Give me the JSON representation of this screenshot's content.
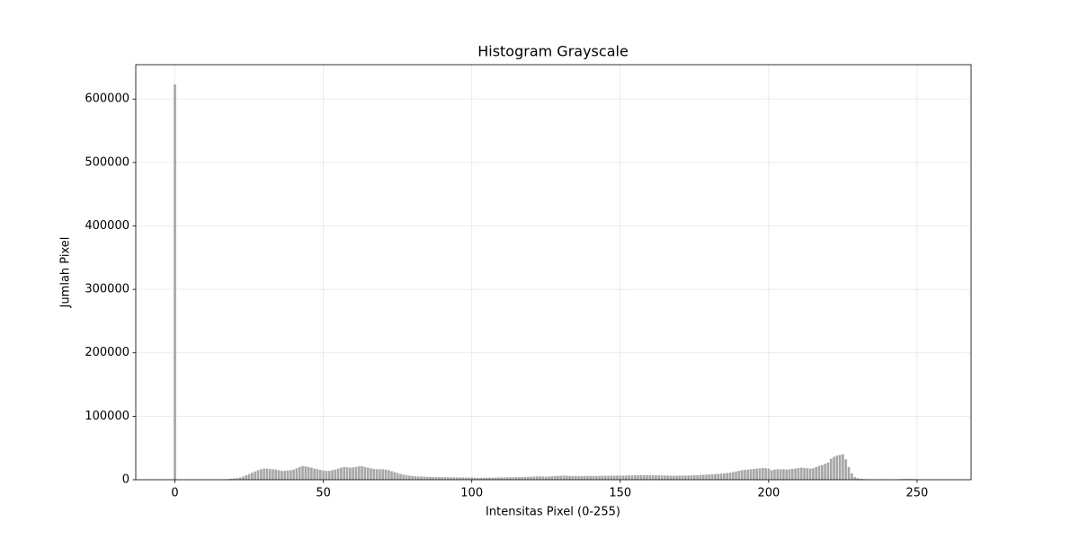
{
  "chart_data": {
    "type": "bar",
    "title": "Histogram Grayscale",
    "xlabel": "Intensitas Pixel (0-255)",
    "ylabel": "Jumlah Pixel",
    "x": [
      0,
      1,
      2,
      3,
      4,
      5,
      6,
      7,
      8,
      9,
      10,
      11,
      12,
      13,
      14,
      15,
      16,
      17,
      18,
      19,
      20,
      21,
      22,
      23,
      24,
      25,
      26,
      27,
      28,
      29,
      30,
      31,
      32,
      33,
      34,
      35,
      36,
      37,
      38,
      39,
      40,
      41,
      42,
      43,
      44,
      45,
      46,
      47,
      48,
      49,
      50,
      51,
      52,
      53,
      54,
      55,
      56,
      57,
      58,
      59,
      60,
      61,
      62,
      63,
      64,
      65,
      66,
      67,
      68,
      69,
      70,
      71,
      72,
      73,
      74,
      75,
      76,
      77,
      78,
      79,
      80,
      81,
      82,
      83,
      84,
      85,
      86,
      87,
      88,
      89,
      90,
      91,
      92,
      93,
      94,
      95,
      96,
      97,
      98,
      99,
      100,
      101,
      102,
      103,
      104,
      105,
      106,
      107,
      108,
      109,
      110,
      111,
      112,
      113,
      114,
      115,
      116,
      117,
      118,
      119,
      120,
      121,
      122,
      123,
      124,
      125,
      126,
      127,
      128,
      129,
      130,
      131,
      132,
      133,
      134,
      135,
      136,
      137,
      138,
      139,
      140,
      141,
      142,
      143,
      144,
      145,
      146,
      147,
      148,
      149,
      150,
      151,
      152,
      153,
      154,
      155,
      156,
      157,
      158,
      159,
      160,
      161,
      162,
      163,
      164,
      165,
      166,
      167,
      168,
      169,
      170,
      171,
      172,
      173,
      174,
      175,
      176,
      177,
      178,
      179,
      180,
      181,
      182,
      183,
      184,
      185,
      186,
      187,
      188,
      189,
      190,
      191,
      192,
      193,
      194,
      195,
      196,
      197,
      198,
      199,
      200,
      201,
      202,
      203,
      204,
      205,
      206,
      207,
      208,
      209,
      210,
      211,
      212,
      213,
      214,
      215,
      216,
      217,
      218,
      219,
      220,
      221,
      222,
      223,
      224,
      225,
      226,
      227,
      228,
      229,
      230,
      231,
      232,
      233,
      234,
      235,
      236,
      237,
      238,
      239,
      240,
      241,
      242,
      243,
      244,
      245,
      246,
      247,
      248,
      249,
      250,
      251,
      252,
      253,
      254,
      255
    ],
    "values": [
      623000,
      0,
      0,
      0,
      0,
      0,
      0,
      0,
      0,
      0,
      0,
      0,
      0,
      0,
      0,
      100,
      200,
      500,
      1000,
      1500,
      2000,
      2500,
      3500,
      5000,
      7000,
      9000,
      11000,
      13000,
      15000,
      16500,
      17500,
      17500,
      17000,
      16500,
      16000,
      15000,
      14000,
      14000,
      14500,
      15000,
      16000,
      18000,
      20000,
      21500,
      21000,
      20000,
      19000,
      17500,
      16500,
      15500,
      14500,
      14000,
      14000,
      15000,
      16000,
      17500,
      19000,
      20000,
      19500,
      19000,
      19500,
      20000,
      21000,
      21500,
      20000,
      19000,
      18000,
      17000,
      16500,
      16500,
      16500,
      16000,
      15000,
      13500,
      12000,
      10500,
      9000,
      8000,
      7000,
      6500,
      6000,
      5500,
      5000,
      5000,
      4800,
      4500,
      4500,
      4300,
      4200,
      4000,
      4000,
      4000,
      3800,
      3800,
      3700,
      3700,
      3600,
      3600,
      3500,
      3500,
      3500,
      3200,
      3000,
      3000,
      3100,
      3200,
      3300,
      3300,
      3400,
      3500,
      3600,
      3700,
      3800,
      3900,
      4000,
      4000,
      4100,
      4200,
      4300,
      4500,
      4700,
      5000,
      5200,
      5300,
      5000,
      4800,
      5200,
      5500,
      5800,
      6000,
      6200,
      6500,
      6300,
      6000,
      5800,
      5800,
      5800,
      5900,
      6000,
      6000,
      6000,
      6000,
      6000,
      6100,
      6200,
      6200,
      6300,
      6300,
      6400,
      6400,
      6500,
      6500,
      6600,
      6700,
      6800,
      6900,
      7000,
      7100,
      7200,
      7100,
      7000,
      7000,
      6900,
      6800,
      6700,
      6600,
      6500,
      6400,
      6400,
      6400,
      6500,
      6500,
      6600,
      6700,
      6800,
      7000,
      7200,
      7500,
      7800,
      8000,
      8200,
      8500,
      8800,
      9200,
      9600,
      10000,
      10500,
      11000,
      12000,
      13000,
      14000,
      15000,
      15500,
      16000,
      16500,
      17000,
      17500,
      18000,
      18500,
      18000,
      17500,
      15000,
      16000,
      16500,
      16500,
      16500,
      16000,
      16500,
      17000,
      17500,
      18500,
      19000,
      18500,
      18000,
      17500,
      18000,
      20000,
      22000,
      23000,
      25000,
      27000,
      33000,
      36000,
      38000,
      39000,
      40000,
      32000,
      20000,
      10000,
      4000,
      2500,
      1500,
      1000,
      800,
      500,
      300,
      200,
      200,
      500,
      300,
      200,
      200,
      300,
      500,
      800,
      1000,
      1200,
      1300,
      1200,
      1000,
      800,
      500,
      200,
      100,
      0,
      0
    ],
    "color": "#a6a6a6",
    "xlim": [
      -13.19,
      268.19
    ],
    "xticks": [
      0,
      50,
      100,
      150,
      200,
      250
    ],
    "ylim": [
      0,
      654150
    ],
    "yticks": [
      0,
      100000,
      200000,
      300000,
      400000,
      500000,
      600000
    ],
    "grid": true
  }
}
